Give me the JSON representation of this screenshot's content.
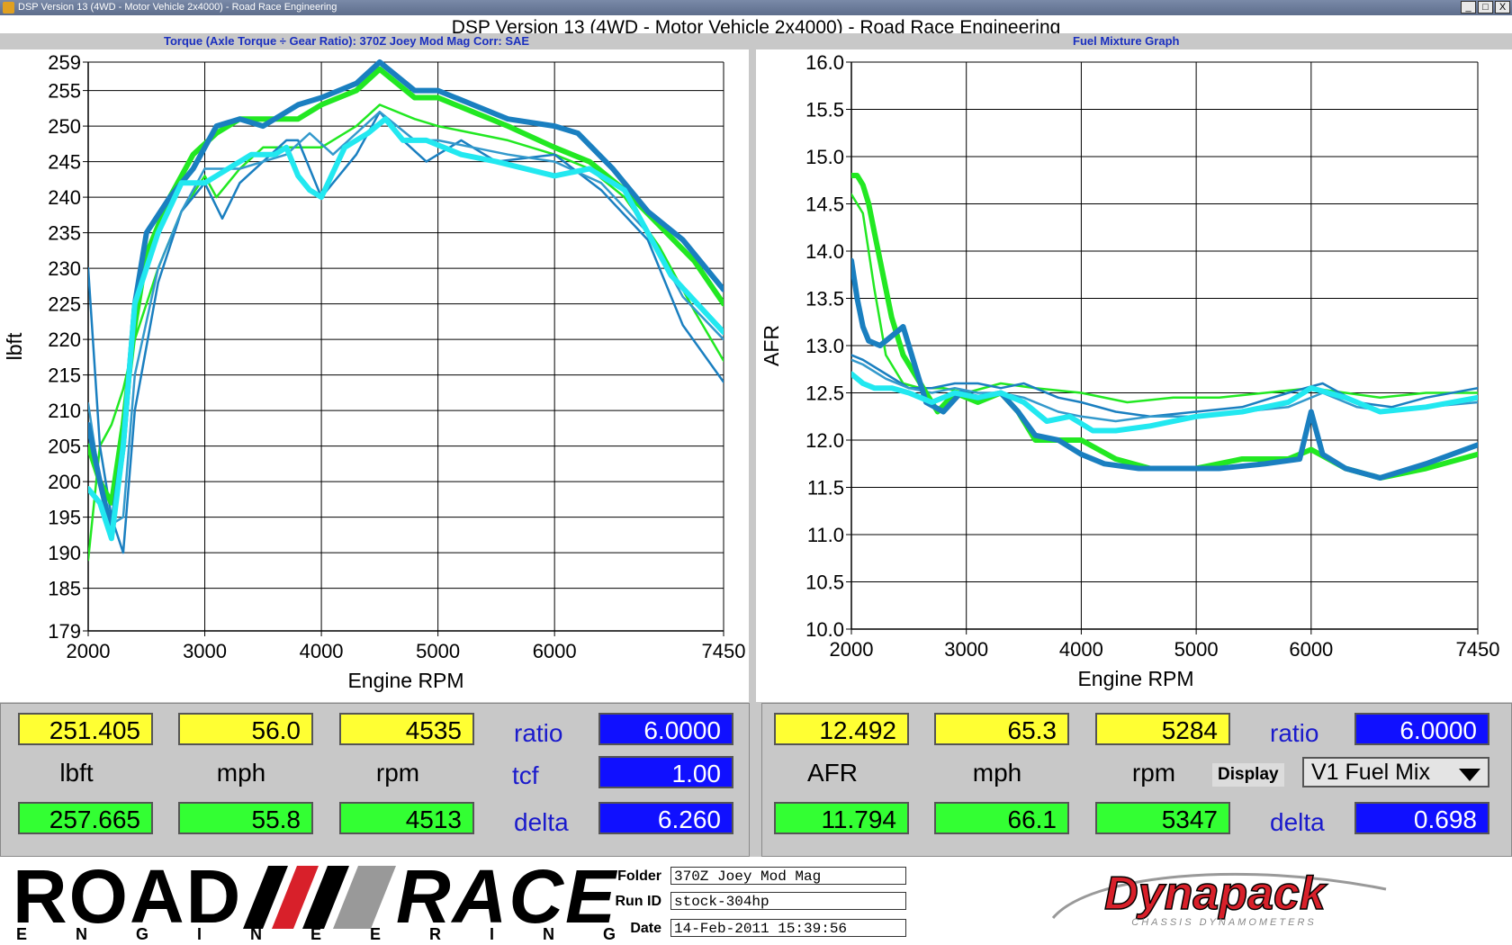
{
  "window": {
    "title": "DSP Version 13 (4WD - Motor Vehicle 2x4000) - Road Race Engineering",
    "buttons": [
      "_",
      "□",
      "X"
    ]
  },
  "header": {
    "title": "DSP Version 13 (4WD - Motor Vehicle 2x4000) - Road Race Engineering",
    "left_subtitle": "Torque (Axle Torque ÷ Gear Ratio): 370Z Joey Mod Mag      Corr: SAE",
    "right_subtitle": "Fuel Mixture Graph"
  },
  "chart_data": [
    {
      "type": "line",
      "title": "Torque (Axle Torque ÷ Gear Ratio): 370Z Joey Mod Mag      Corr: SAE",
      "xlabel": "Engine RPM",
      "ylabel": "lbft",
      "xlim": [
        2000,
        7450
      ],
      "ylim": [
        179,
        259
      ],
      "xticks": [
        "2000",
        "3000",
        "4000",
        "5000",
        "6000",
        "7450"
      ],
      "yticks": [
        "259",
        "255",
        "250",
        "245",
        "240",
        "235",
        "230",
        "225",
        "220",
        "215",
        "210",
        "205",
        "200",
        "195",
        "190",
        "185",
        "179"
      ],
      "ytick_values": [
        259,
        255,
        250,
        245,
        240,
        235,
        230,
        225,
        220,
        215,
        210,
        205,
        200,
        195,
        190,
        185,
        179
      ],
      "grid": true,
      "series": [
        {
          "color": "#22e822",
          "weight": "thick",
          "x": [
            2000,
            2100,
            2200,
            2300,
            2400,
            2500,
            2700,
            2900,
            3100,
            3300,
            3500,
            3800,
            4000,
            4300,
            4500,
            4800,
            5000,
            5300,
            5600,
            6000,
            6300,
            6600,
            6900,
            7200,
            7450
          ],
          "values": [
            205,
            200,
            197,
            208,
            222,
            232,
            240,
            246,
            249,
            251,
            251,
            251,
            253,
            255,
            258,
            254,
            254,
            252,
            250,
            247,
            245,
            241,
            236,
            231,
            225
          ]
        },
        {
          "color": "#22e822",
          "weight": "thin",
          "x": [
            2000,
            2100,
            2200,
            2300,
            2400,
            2600,
            2800,
            3000,
            3100,
            3300,
            3500,
            3800,
            4000,
            4300,
            4500,
            4800,
            5000,
            5300,
            5600,
            6000,
            6300,
            6600,
            6900,
            7200,
            7450
          ],
          "values": [
            189,
            205,
            208,
            213,
            220,
            230,
            238,
            243,
            240,
            244,
            247,
            247,
            247,
            250,
            253,
            251,
            250,
            249,
            248,
            246,
            244,
            240,
            233,
            224,
            217
          ]
        },
        {
          "color": "#1a7fc0",
          "weight": "thick",
          "x": [
            2000,
            2100,
            2200,
            2300,
            2400,
            2500,
            2700,
            2900,
            3100,
            3300,
            3500,
            3800,
            4000,
            4300,
            4500,
            4800,
            5000,
            5300,
            5600,
            6000,
            6200,
            6500,
            6800,
            7100,
            7450
          ],
          "values": [
            208,
            200,
            193,
            205,
            225,
            235,
            240,
            244,
            250,
            251,
            250,
            253,
            254,
            256,
            259,
            255,
            255,
            253,
            251,
            250,
            249,
            244,
            238,
            234,
            227
          ]
        },
        {
          "color": "#1a7fc0",
          "weight": "thin",
          "x": [
            2000,
            2100,
            2200,
            2300,
            2400,
            2600,
            2800,
            3000,
            3150,
            3300,
            3500,
            3700,
            3800,
            4000,
            4300,
            4500,
            4700,
            4900,
            5200,
            5500,
            6000,
            6400,
            6800,
            7100,
            7450
          ],
          "values": [
            230,
            205,
            195,
            190,
            210,
            228,
            238,
            242,
            237,
            242,
            245,
            248,
            248,
            240,
            246,
            252,
            248,
            245,
            248,
            245,
            246,
            241,
            234,
            222,
            214
          ]
        },
        {
          "color": "#3399cc",
          "weight": "thin",
          "x": [
            2000,
            2100,
            2200,
            2300,
            2400,
            2600,
            2800,
            3000,
            3300,
            3500,
            3700,
            3900,
            4100,
            4300,
            4500,
            4800,
            5000,
            5300,
            5600,
            6000,
            6400,
            6800,
            7100,
            7450
          ],
          "values": [
            211,
            200,
            194,
            195,
            215,
            230,
            238,
            244,
            244,
            245,
            246,
            249,
            246,
            249,
            252,
            248,
            248,
            247,
            246,
            245,
            242,
            235,
            226,
            220
          ]
        },
        {
          "color": "#22e8f0",
          "weight": "thick",
          "x": [
            2000,
            2100,
            2200,
            2300,
            2400,
            2600,
            2800,
            3000,
            3200,
            3400,
            3600,
            3700,
            3800,
            3900,
            4000,
            4200,
            4400,
            4550,
            4700,
            4900,
            5200,
            5500,
            6000,
            6300,
            6600,
            7000,
            7450
          ],
          "values": [
            199,
            197,
            192,
            205,
            225,
            235,
            242,
            242,
            244,
            246,
            246,
            247,
            243,
            241,
            240,
            247,
            249,
            251,
            248,
            248,
            246,
            245,
            243,
            244,
            241,
            229,
            221
          ]
        }
      ]
    },
    {
      "type": "line",
      "title": "Fuel Mixture Graph",
      "xlabel": "Engine RPM",
      "ylabel": "AFR",
      "xlim": [
        2000,
        7450
      ],
      "ylim": [
        10.0,
        16.0
      ],
      "xticks": [
        "2000",
        "3000",
        "4000",
        "5000",
        "6000",
        "7450"
      ],
      "yticks": [
        "16.0",
        "15.5",
        "15.0",
        "14.5",
        "14.0",
        "13.5",
        "13.0",
        "12.5",
        "12.0",
        "11.5",
        "11.0",
        "10.5",
        "10.0"
      ],
      "ytick_values": [
        16.0,
        15.5,
        15.0,
        14.5,
        14.0,
        13.5,
        13.0,
        12.5,
        12.0,
        11.5,
        11.0,
        10.5,
        10.0
      ],
      "grid": true,
      "series": [
        {
          "color": "#22e822",
          "weight": "thick",
          "x": [
            2000,
            2050,
            2100,
            2150,
            2200,
            2250,
            2350,
            2450,
            2600,
            2750,
            2900,
            3100,
            3300,
            3450,
            3600,
            3800,
            4000,
            4300,
            4600,
            5000,
            5400,
            5800,
            6000,
            6300,
            6600,
            7000,
            7450
          ],
          "values": [
            14.8,
            14.8,
            14.7,
            14.5,
            14.2,
            13.9,
            13.3,
            12.9,
            12.6,
            12.3,
            12.5,
            12.4,
            12.5,
            12.3,
            12.0,
            12.0,
            12.0,
            11.8,
            11.7,
            11.7,
            11.8,
            11.8,
            11.9,
            11.7,
            11.6,
            11.7,
            11.85
          ]
        },
        {
          "color": "#22e822",
          "weight": "thin",
          "x": [
            2000,
            2100,
            2200,
            2300,
            2450,
            2600,
            2800,
            3000,
            3300,
            3600,
            4000,
            4400,
            4800,
            5200,
            5600,
            6000,
            6300,
            6600,
            7000,
            7450
          ],
          "values": [
            14.6,
            14.4,
            13.6,
            12.9,
            12.6,
            12.55,
            12.55,
            12.5,
            12.6,
            12.55,
            12.5,
            12.4,
            12.45,
            12.45,
            12.5,
            12.55,
            12.5,
            12.45,
            12.5,
            12.5
          ]
        },
        {
          "color": "#1a7fc0",
          "weight": "thick",
          "x": [
            2000,
            2050,
            2100,
            2150,
            2250,
            2350,
            2450,
            2550,
            2650,
            2800,
            2950,
            3100,
            3300,
            3450,
            3600,
            3800,
            4000,
            4200,
            4500,
            4800,
            5200,
            5600,
            5900,
            6000,
            6100,
            6300,
            6600,
            7000,
            7450
          ],
          "values": [
            13.9,
            13.5,
            13.2,
            13.05,
            13.0,
            13.1,
            13.2,
            12.8,
            12.4,
            12.3,
            12.5,
            12.45,
            12.5,
            12.3,
            12.05,
            12.0,
            11.85,
            11.75,
            11.7,
            11.7,
            11.7,
            11.75,
            11.8,
            12.3,
            11.85,
            11.7,
            11.6,
            11.75,
            11.95
          ]
        },
        {
          "color": "#1a7fc0",
          "weight": "thin",
          "x": [
            2000,
            2100,
            2300,
            2500,
            2700,
            2900,
            3100,
            3300,
            3500,
            3800,
            4000,
            4300,
            4600,
            5000,
            5400,
            5800,
            6100,
            6400,
            6700,
            7000,
            7450
          ],
          "values": [
            12.9,
            12.85,
            12.7,
            12.55,
            12.55,
            12.6,
            12.6,
            12.55,
            12.6,
            12.45,
            12.4,
            12.3,
            12.25,
            12.3,
            12.35,
            12.5,
            12.6,
            12.4,
            12.35,
            12.45,
            12.55
          ]
        },
        {
          "color": "#3399cc",
          "weight": "thin",
          "x": [
            2000,
            2100,
            2300,
            2500,
            2700,
            2900,
            3100,
            3300,
            3500,
            3800,
            4000,
            4300,
            4600,
            5000,
            5400,
            5800,
            6100,
            6400,
            6700,
            7000,
            7450
          ],
          "values": [
            12.85,
            12.8,
            12.65,
            12.55,
            12.5,
            12.55,
            12.5,
            12.5,
            12.45,
            12.3,
            12.25,
            12.2,
            12.25,
            12.25,
            12.3,
            12.35,
            12.5,
            12.35,
            12.3,
            12.35,
            12.4
          ]
        },
        {
          "color": "#22e8f0",
          "weight": "thick",
          "x": [
            2000,
            2100,
            2200,
            2350,
            2500,
            2700,
            2900,
            3100,
            3300,
            3500,
            3700,
            3900,
            4100,
            4300,
            4600,
            5000,
            5400,
            5800,
            6000,
            6300,
            6600,
            7000,
            7450
          ],
          "values": [
            12.7,
            12.6,
            12.55,
            12.55,
            12.5,
            12.4,
            12.5,
            12.45,
            12.5,
            12.4,
            12.2,
            12.25,
            12.1,
            12.1,
            12.15,
            12.25,
            12.3,
            12.4,
            12.55,
            12.45,
            12.3,
            12.35,
            12.45
          ]
        }
      ]
    }
  ],
  "left_readout": {
    "row1": [
      "251.405",
      "56.0",
      "4535"
    ],
    "units": [
      "lbft",
      "mph",
      "rpm"
    ],
    "row2": [
      "257.665",
      "55.8",
      "4513"
    ],
    "ratio_label": "ratio",
    "ratio_value": "6.0000",
    "tcf_label": "tcf",
    "tcf_value": "1.00",
    "delta_label": "delta",
    "delta_value": "6.260"
  },
  "right_readout": {
    "row1": [
      "12.492",
      "65.3",
      "5284"
    ],
    "units": [
      "AFR",
      "mph",
      "rpm"
    ],
    "row2": [
      "11.794",
      "66.1",
      "5347"
    ],
    "ratio_label": "ratio",
    "ratio_value": "6.0000",
    "display_label": "Display",
    "display_value": "V1 Fuel Mix",
    "delta_label": "delta",
    "delta_value": "0.698"
  },
  "footer": {
    "logo_left": "ROAD",
    "logo_right": "RACE",
    "logo_sub": "ENGINEERING",
    "folder_label": "Folder",
    "folder_value": "370Z Joey Mod Mag",
    "runid_label": "Run ID",
    "runid_value": "stock-304hp",
    "date_label": "Date",
    "date_value": "14-Feb-2011 15:39:56",
    "brand": "Dynapack",
    "brand_sub": "CHASSIS DYNAMOMETERS",
    "colors": {
      "brand_red": "#d8202a",
      "brand_sub": "#888888"
    }
  }
}
